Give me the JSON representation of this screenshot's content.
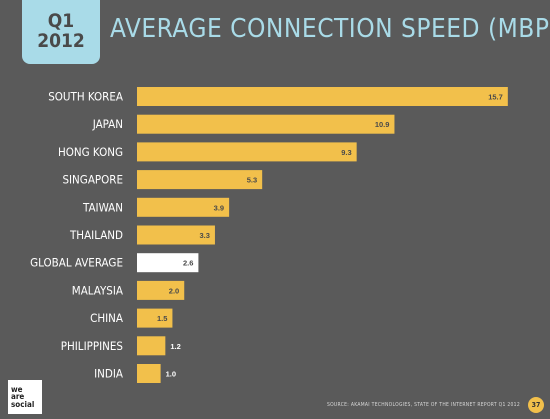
{
  "header": {
    "quarter": "Q1",
    "year": "2012",
    "title": "AVERAGE CONNECTION SPEED (MBPS)"
  },
  "colors": {
    "background": "#5a5a5a",
    "bar": "#f2c04b",
    "highlight_bar": "#ffffff",
    "accent": "#a9dbe8",
    "label": "#ffffff"
  },
  "chart_data": {
    "type": "bar",
    "orientation": "horizontal",
    "title": "AVERAGE CONNECTION SPEED (MBPS)",
    "categories": [
      "SOUTH KOREA",
      "JAPAN",
      "HONG KONG",
      "SINGAPORE",
      "TAIWAN",
      "THAILAND",
      "GLOBAL AVERAGE",
      "MALAYSIA",
      "CHINA",
      "PHILIPPINES",
      "INDIA"
    ],
    "values": [
      15.7,
      10.9,
      9.3,
      5.3,
      3.9,
      3.3,
      2.6,
      2.0,
      1.5,
      1.2,
      1.0
    ],
    "value_labels": [
      "15.7",
      "10.9",
      "9.3",
      "5.3",
      "3.9",
      "3.3",
      "2.6",
      "2.0",
      "1.5",
      "1.2",
      "1.0"
    ],
    "highlight": "GLOBAL AVERAGE",
    "xlim": [
      0,
      16.3
    ],
    "grid": false,
    "legend": "none"
  },
  "footer": {
    "logo_lines": [
      "we",
      "are",
      "social"
    ],
    "source": "SOURCE: AKAMAI TECHNOLOGIES, STATE OF THE INTERNET REPORT Q1 2012",
    "page_number": "37"
  }
}
